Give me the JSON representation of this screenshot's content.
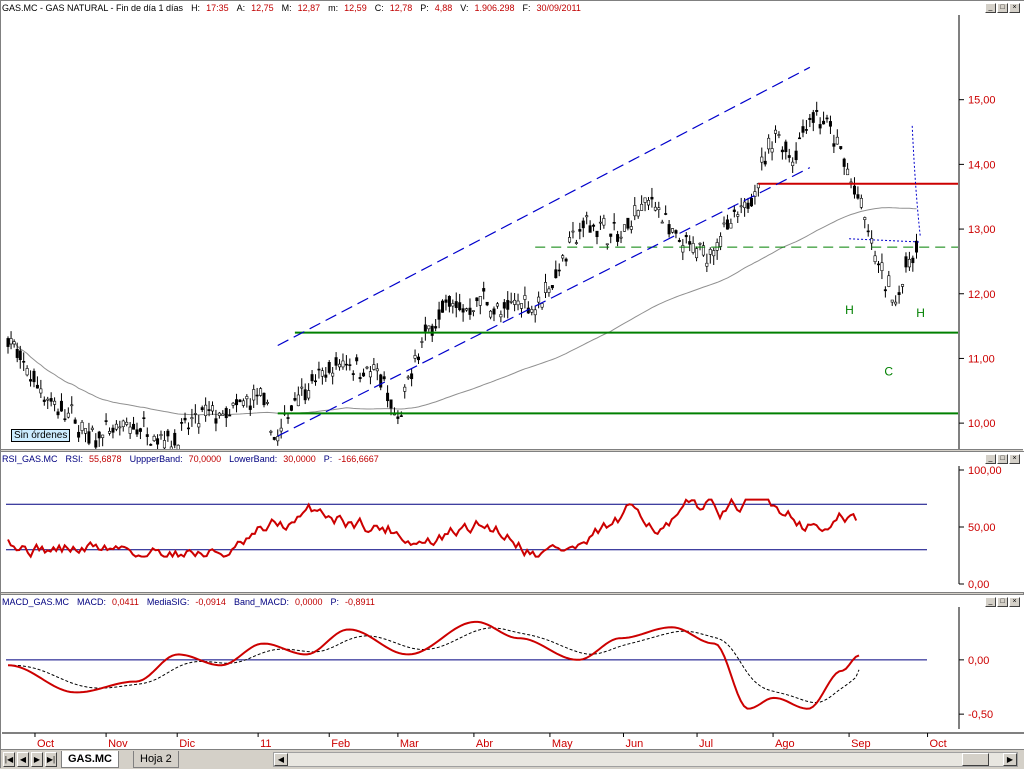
{
  "price_header": [
    {
      "k": "GAS.MC - GAS NATURAL - Fin de día 1 días",
      "v": ""
    },
    {
      "k": "H:",
      "v": "17:35"
    },
    {
      "k": "A:",
      "v": "12,75"
    },
    {
      "k": "M:",
      "v": "12,87"
    },
    {
      "k": "m:",
      "v": "12,59"
    },
    {
      "k": "C:",
      "v": "12,78"
    },
    {
      "k": "P:",
      "v": "4,88"
    },
    {
      "k": "V:",
      "v": "1.906.298"
    },
    {
      "k": "F:",
      "v": "30/09/2011"
    }
  ],
  "rsi_header": [
    {
      "k": "RSI_GAS.MC",
      "v": ""
    },
    {
      "k": "RSI:",
      "v": "55,6878"
    },
    {
      "k": "UppperBand:",
      "v": "70,0000"
    },
    {
      "k": "LowerBand:",
      "v": "30,0000"
    },
    {
      "k": "P:",
      "v": "-166,6667"
    }
  ],
  "macd_header": [
    {
      "k": "MACD_GAS.MC",
      "v": ""
    },
    {
      "k": "MACD:",
      "v": "0,0411"
    },
    {
      "k": "MediaSIG:",
      "v": "-0,0914"
    },
    {
      "k": "Band_MACD:",
      "v": "0,0000"
    },
    {
      "k": "P:",
      "v": "-0,8911"
    }
  ],
  "orders_label": "Sin órdenes",
  "tabs": [
    {
      "label": "GAS.MC",
      "active": true
    },
    {
      "label": "Hoja 2",
      "active": false
    }
  ],
  "window_buttons": [
    "_",
    "□",
    "×"
  ],
  "colors": {
    "candle": "#000000",
    "channel": "#0000cc",
    "support": "#008000",
    "resistance": "#cc0000",
    "rsi": "#cc0000",
    "macd": "#cc0000",
    "ma": "#909090",
    "axis_text": "#cc0000"
  },
  "chart_data": [
    {
      "type": "candlestick",
      "title": "GAS.MC - GAS NATURAL - Fin de día 1 días",
      "x_ticks": [
        "Oct",
        "Nov",
        "Dic",
        "11",
        "Feb",
        "Mar",
        "Abr",
        "May",
        "Jun",
        "Jul",
        "Ago",
        "Sep",
        "Oct"
      ],
      "y_ticks": [
        "10,00",
        "11,00",
        "12,00",
        "13,00",
        "14,00",
        "15,00"
      ],
      "ylim": [
        9.6,
        16.0
      ],
      "close_path": [
        [
          "2010-09-23",
          11.35
        ],
        [
          "2010-09-28",
          10.95
        ],
        [
          "2010-10-05",
          10.6
        ],
        [
          "2010-10-12",
          10.25
        ],
        [
          "2010-10-19",
          10.1
        ],
        [
          "2010-10-26",
          9.75
        ],
        [
          "2010-11-02",
          9.85
        ],
        [
          "2010-11-09",
          9.9
        ],
        [
          "2010-11-16",
          9.95
        ],
        [
          "2010-11-23",
          9.8
        ],
        [
          "2010-11-30",
          9.75
        ],
        [
          "2010-12-07",
          10.0
        ],
        [
          "2010-12-14",
          10.15
        ],
        [
          "2010-12-21",
          10.1
        ],
        [
          "2010-12-28",
          10.3
        ],
        [
          "2011-01-04",
          10.4
        ],
        [
          "2011-01-11",
          9.7
        ],
        [
          "2011-01-18",
          10.45
        ],
        [
          "2011-01-25",
          10.6
        ],
        [
          "2011-02-01",
          10.8
        ],
        [
          "2011-02-08",
          10.95
        ],
        [
          "2011-02-15",
          10.85
        ],
        [
          "2011-02-22",
          10.7
        ],
        [
          "2011-03-01",
          9.95
        ],
        [
          "2011-03-08",
          11.0
        ],
        [
          "2011-03-15",
          11.55
        ],
        [
          "2011-03-22",
          11.85
        ],
        [
          "2011-03-29",
          11.75
        ],
        [
          "2011-04-05",
          11.95
        ],
        [
          "2011-04-12",
          11.65
        ],
        [
          "2011-04-19",
          11.9
        ],
        [
          "2011-04-26",
          11.8
        ],
        [
          "2011-05-03",
          12.2
        ],
        [
          "2011-05-10",
          12.75
        ],
        [
          "2011-05-17",
          13.1
        ],
        [
          "2011-05-24",
          13.0
        ],
        [
          "2011-05-31",
          12.85
        ],
        [
          "2011-06-07",
          13.3
        ],
        [
          "2011-06-14",
          13.45
        ],
        [
          "2011-06-21",
          12.85
        ],
        [
          "2011-06-28",
          12.7
        ],
        [
          "2011-07-05",
          12.6
        ],
        [
          "2011-07-12",
          12.95
        ],
        [
          "2011-07-19",
          13.2
        ],
        [
          "2011-07-26",
          13.8
        ],
        [
          "2011-08-02",
          14.5
        ],
        [
          "2011-08-09",
          14.1
        ],
        [
          "2011-08-16",
          14.8
        ],
        [
          "2011-08-23",
          14.6
        ],
        [
          "2011-08-30",
          14.05
        ],
        [
          "2011-09-06",
          13.3
        ],
        [
          "2011-09-13",
          12.4
        ],
        [
          "2011-09-20",
          11.9
        ],
        [
          "2011-09-27",
          12.65
        ],
        [
          "2011-09-30",
          12.78
        ]
      ],
      "lines": {
        "support_high": 11.4,
        "support_low": 10.15,
        "resistance": 13.7,
        "neckline": 12.72
      },
      "annotations": [
        "H",
        "C",
        "H"
      ]
    },
    {
      "type": "line",
      "title": "RSI_GAS.MC",
      "y_ticks": [
        "0,00",
        "50,00",
        "100,00"
      ],
      "ylim": [
        0,
        100
      ],
      "bands": [
        30,
        70
      ],
      "last": 55.69
    },
    {
      "type": "line",
      "title": "MACD_GAS.MC",
      "y_ticks": [
        "-0,50",
        "0,00"
      ],
      "ylim": [
        -0.6,
        0.45
      ],
      "zero_band": 0,
      "last_macd": 0.0411,
      "last_signal": -0.0914
    }
  ]
}
